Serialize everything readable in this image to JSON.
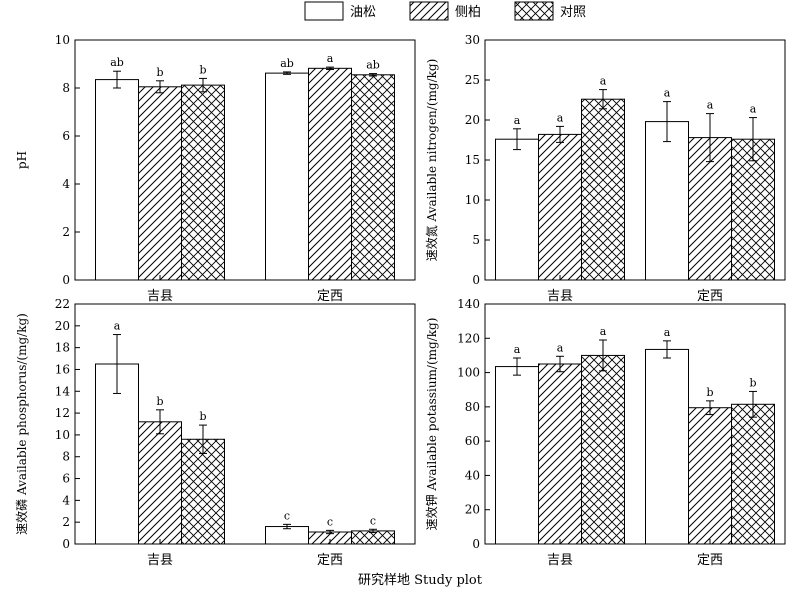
{
  "legend": [
    "油松",
    "侧柏",
    "对照"
  ],
  "xtitle": "研究样地 Study plot",
  "chart_data": [
    {
      "type": "bar",
      "ylabel": "pH",
      "ylim": [
        0,
        10
      ],
      "yticks": [
        0,
        2,
        4,
        6,
        8,
        10
      ],
      "categories": [
        "吉县",
        "定西"
      ],
      "series": [
        {
          "name": "油松",
          "values": [
            8.35,
            8.62
          ],
          "errors": [
            0.35,
            0.05
          ],
          "letters": [
            "ab",
            "ab"
          ]
        },
        {
          "name": "侧柏",
          "values": [
            8.05,
            8.82
          ],
          "errors": [
            0.25,
            0.05
          ],
          "letters": [
            "b",
            "a"
          ]
        },
        {
          "name": "对照",
          "values": [
            8.12,
            8.55
          ],
          "errors": [
            0.28,
            0.05
          ],
          "letters": [
            "b",
            "ab"
          ]
        }
      ]
    },
    {
      "type": "bar",
      "ylabel": "速效氮 Available nitrogen/(mg/kg)",
      "ylim": [
        0,
        30
      ],
      "yticks": [
        0,
        5,
        10,
        15,
        20,
        25,
        30
      ],
      "categories": [
        "吉县",
        "定西"
      ],
      "series": [
        {
          "name": "油松",
          "values": [
            17.6,
            19.8
          ],
          "errors": [
            1.3,
            2.5
          ],
          "letters": [
            "a",
            "a"
          ]
        },
        {
          "name": "侧柏",
          "values": [
            18.2,
            17.8
          ],
          "errors": [
            1.0,
            3.0
          ],
          "letters": [
            "a",
            "a"
          ]
        },
        {
          "name": "对照",
          "values": [
            22.6,
            17.6
          ],
          "errors": [
            1.2,
            2.7
          ],
          "letters": [
            "a",
            "a"
          ]
        }
      ]
    },
    {
      "type": "bar",
      "ylabel": "速效磷 Available phosphorus/(mg/kg)",
      "ylim": [
        0,
        22
      ],
      "yticks": [
        0,
        2,
        4,
        6,
        8,
        10,
        12,
        14,
        16,
        18,
        20,
        22
      ],
      "categories": [
        "吉县",
        "定西"
      ],
      "series": [
        {
          "name": "油松",
          "values": [
            16.5,
            1.6
          ],
          "errors": [
            2.7,
            0.2
          ],
          "letters": [
            "a",
            "c"
          ]
        },
        {
          "name": "侧柏",
          "values": [
            11.2,
            1.1
          ],
          "errors": [
            1.1,
            0.15
          ],
          "letters": [
            "b",
            "c"
          ]
        },
        {
          "name": "对照",
          "values": [
            9.6,
            1.2
          ],
          "errors": [
            1.3,
            0.15
          ],
          "letters": [
            "b",
            "c"
          ]
        }
      ]
    },
    {
      "type": "bar",
      "ylabel": "速效钾 Available potassium/(mg/kg)",
      "ylim": [
        0,
        140
      ],
      "yticks": [
        0,
        20,
        40,
        60,
        80,
        100,
        120,
        140
      ],
      "categories": [
        "吉县",
        "定西"
      ],
      "series": [
        {
          "name": "油松",
          "values": [
            103.5,
            113.5
          ],
          "errors": [
            5.0,
            5.0
          ],
          "letters": [
            "a",
            "a"
          ]
        },
        {
          "name": "侧柏",
          "values": [
            105.0,
            79.5
          ],
          "errors": [
            4.5,
            4.0
          ],
          "letters": [
            "a",
            "b"
          ]
        },
        {
          "name": "对照",
          "values": [
            110.0,
            81.5
          ],
          "errors": [
            9.0,
            7.5
          ],
          "letters": [
            "a",
            "b"
          ]
        }
      ]
    }
  ]
}
